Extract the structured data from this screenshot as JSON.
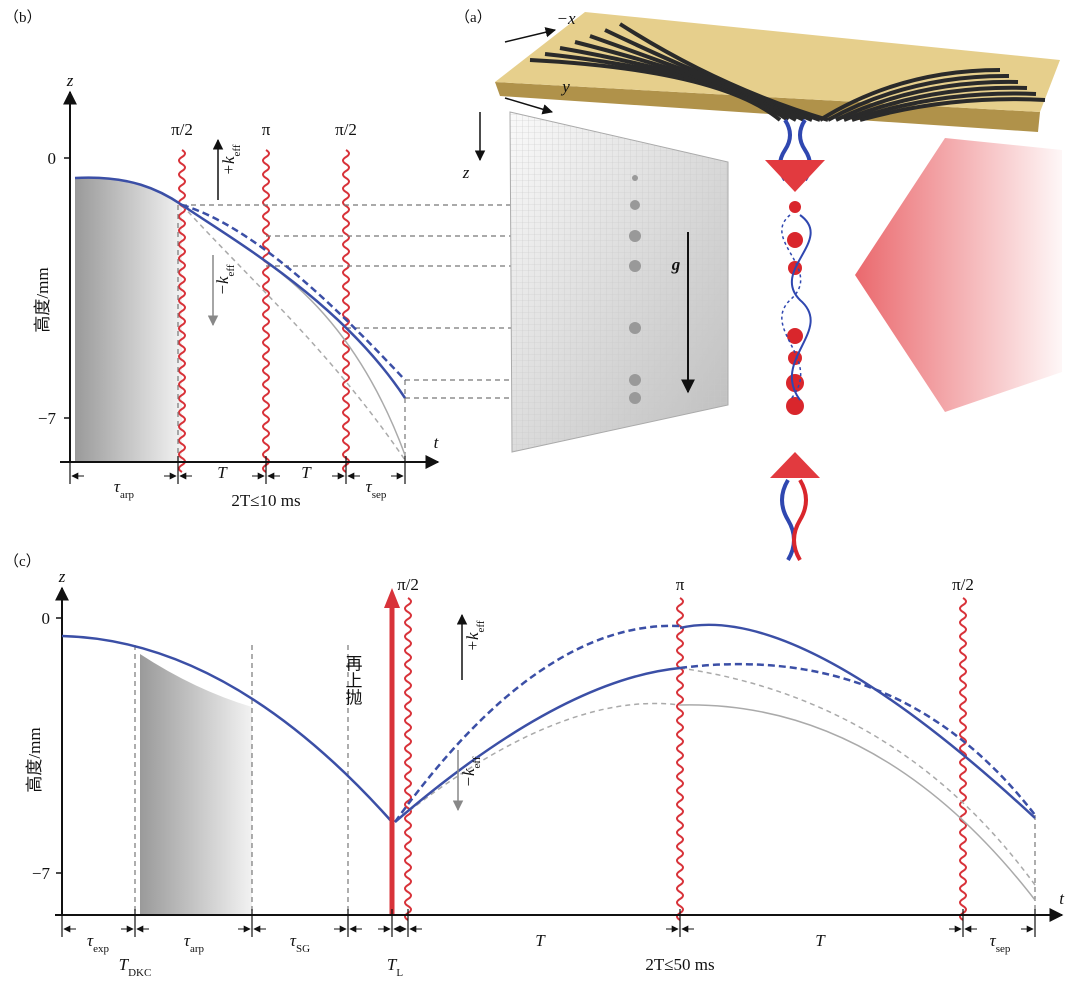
{
  "panel_b": {
    "label": "（b）",
    "z_axis": "z",
    "t_axis": "t",
    "y_ticks": [
      "0",
      "−7"
    ],
    "y_label": "高度/mm",
    "pulses": [
      "π/2",
      "π",
      "π/2"
    ],
    "k_plus": {
      "base": "+k",
      "sub": "eff"
    },
    "k_minus": {
      "base": "−k",
      "sub": "eff"
    },
    "intervals": [
      {
        "base": "τ",
        "sub": "arp"
      },
      {
        "base": "T"
      },
      {
        "base": "T"
      },
      {
        "base": "τ",
        "sub": "sep"
      }
    ],
    "duration": "2T≤10 ms"
  },
  "panel_a": {
    "label": "（a）",
    "axes": [
      "−x",
      "y",
      "z"
    ],
    "gravity": "g"
  },
  "panel_c": {
    "label": "（c）",
    "z_axis": "z",
    "t_axis": "t",
    "y_ticks": [
      "0",
      "−7"
    ],
    "y_label": "高度/mm",
    "pulses": [
      "π/2",
      "π",
      "π/2"
    ],
    "relaunch": "再上抛",
    "k_plus": {
      "base": "+k",
      "sub": "eff"
    },
    "k_minus": {
      "base": "−k",
      "sub": "eff"
    },
    "intervals": [
      {
        "base": "τ",
        "sub": "exp"
      },
      {
        "base": "T",
        "sub": "DKC"
      },
      {
        "base": "τ",
        "sub": "arp"
      },
      {
        "base": "τ",
        "sub": "SG"
      },
      {
        "base": "T",
        "sub": "L"
      },
      {
        "base": "T"
      },
      {
        "base": "T"
      },
      {
        "base": "τ",
        "sub": "sep"
      }
    ],
    "duration": "2T≤50 ms"
  }
}
